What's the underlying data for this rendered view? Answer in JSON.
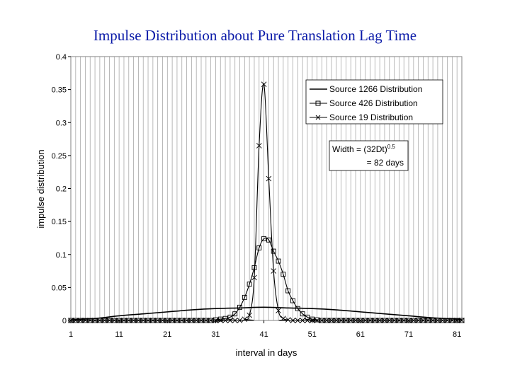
{
  "chart_data": {
    "type": "line",
    "title": "Impulse Distribution about Pure Translation Lag Time",
    "xlabel": "interval in days",
    "ylabel": "impulse distribution",
    "xlim": [
      1,
      82
    ],
    "ylim": [
      0,
      0.4
    ],
    "x_ticks": [
      "1",
      "11",
      "21",
      "31",
      "41",
      "51",
      "61",
      "71",
      "81"
    ],
    "y_ticks": [
      "0",
      "0.05",
      "0.1",
      "0.15",
      "0.2",
      "0.25",
      "0.3",
      "0.35",
      "0.4"
    ],
    "grid": "vertical",
    "legend_position": "top-right",
    "annotation": {
      "line1_prefix": "Width = (32Dt)",
      "line1_sup": "0.5",
      "line2": "= 82 days"
    },
    "series": [
      {
        "name": "Source 1266 Distribution",
        "marker": "none",
        "points": [
          [
            1,
            0.001
          ],
          [
            6,
            0.003
          ],
          [
            11,
            0.007
          ],
          [
            16,
            0.01
          ],
          [
            21,
            0.013
          ],
          [
            26,
            0.016
          ],
          [
            31,
            0.018
          ],
          [
            36,
            0.019
          ],
          [
            41,
            0.02
          ],
          [
            46,
            0.019
          ],
          [
            51,
            0.018
          ],
          [
            56,
            0.016
          ],
          [
            61,
            0.013
          ],
          [
            66,
            0.01
          ],
          [
            71,
            0.007
          ],
          [
            76,
            0.004
          ],
          [
            81,
            0.002
          ],
          [
            82,
            0.001
          ]
        ]
      },
      {
        "name": "Source 426 Distribution",
        "marker": "square",
        "points": [
          [
            1,
            0
          ],
          [
            30,
            0
          ],
          [
            31,
            0.001
          ],
          [
            32,
            0.002
          ],
          [
            33,
            0.003
          ],
          [
            34,
            0.005
          ],
          [
            35,
            0.01
          ],
          [
            36,
            0.02
          ],
          [
            37,
            0.035
          ],
          [
            38,
            0.055
          ],
          [
            39,
            0.08
          ],
          [
            40,
            0.11
          ],
          [
            41,
            0.124
          ],
          [
            42,
            0.122
          ],
          [
            43,
            0.105
          ],
          [
            44,
            0.09
          ],
          [
            45,
            0.07
          ],
          [
            46,
            0.045
          ],
          [
            47,
            0.03
          ],
          [
            48,
            0.018
          ],
          [
            49,
            0.01
          ],
          [
            50,
            0.005
          ],
          [
            51,
            0.002
          ],
          [
            52,
            0.001
          ],
          [
            53,
            0
          ],
          [
            82,
            0
          ]
        ]
      },
      {
        "name": "Source 19 Distribution",
        "marker": "x",
        "points": [
          [
            1,
            0
          ],
          [
            36,
            0
          ],
          [
            37,
            0.002
          ],
          [
            38,
            0.008
          ],
          [
            39,
            0.065
          ],
          [
            40,
            0.265
          ],
          [
            41,
            0.358
          ],
          [
            42,
            0.215
          ],
          [
            43,
            0.075
          ],
          [
            44,
            0.015
          ],
          [
            45,
            0.003
          ],
          [
            46,
            0.001
          ],
          [
            47,
            0
          ],
          [
            82,
            0
          ]
        ]
      }
    ]
  }
}
